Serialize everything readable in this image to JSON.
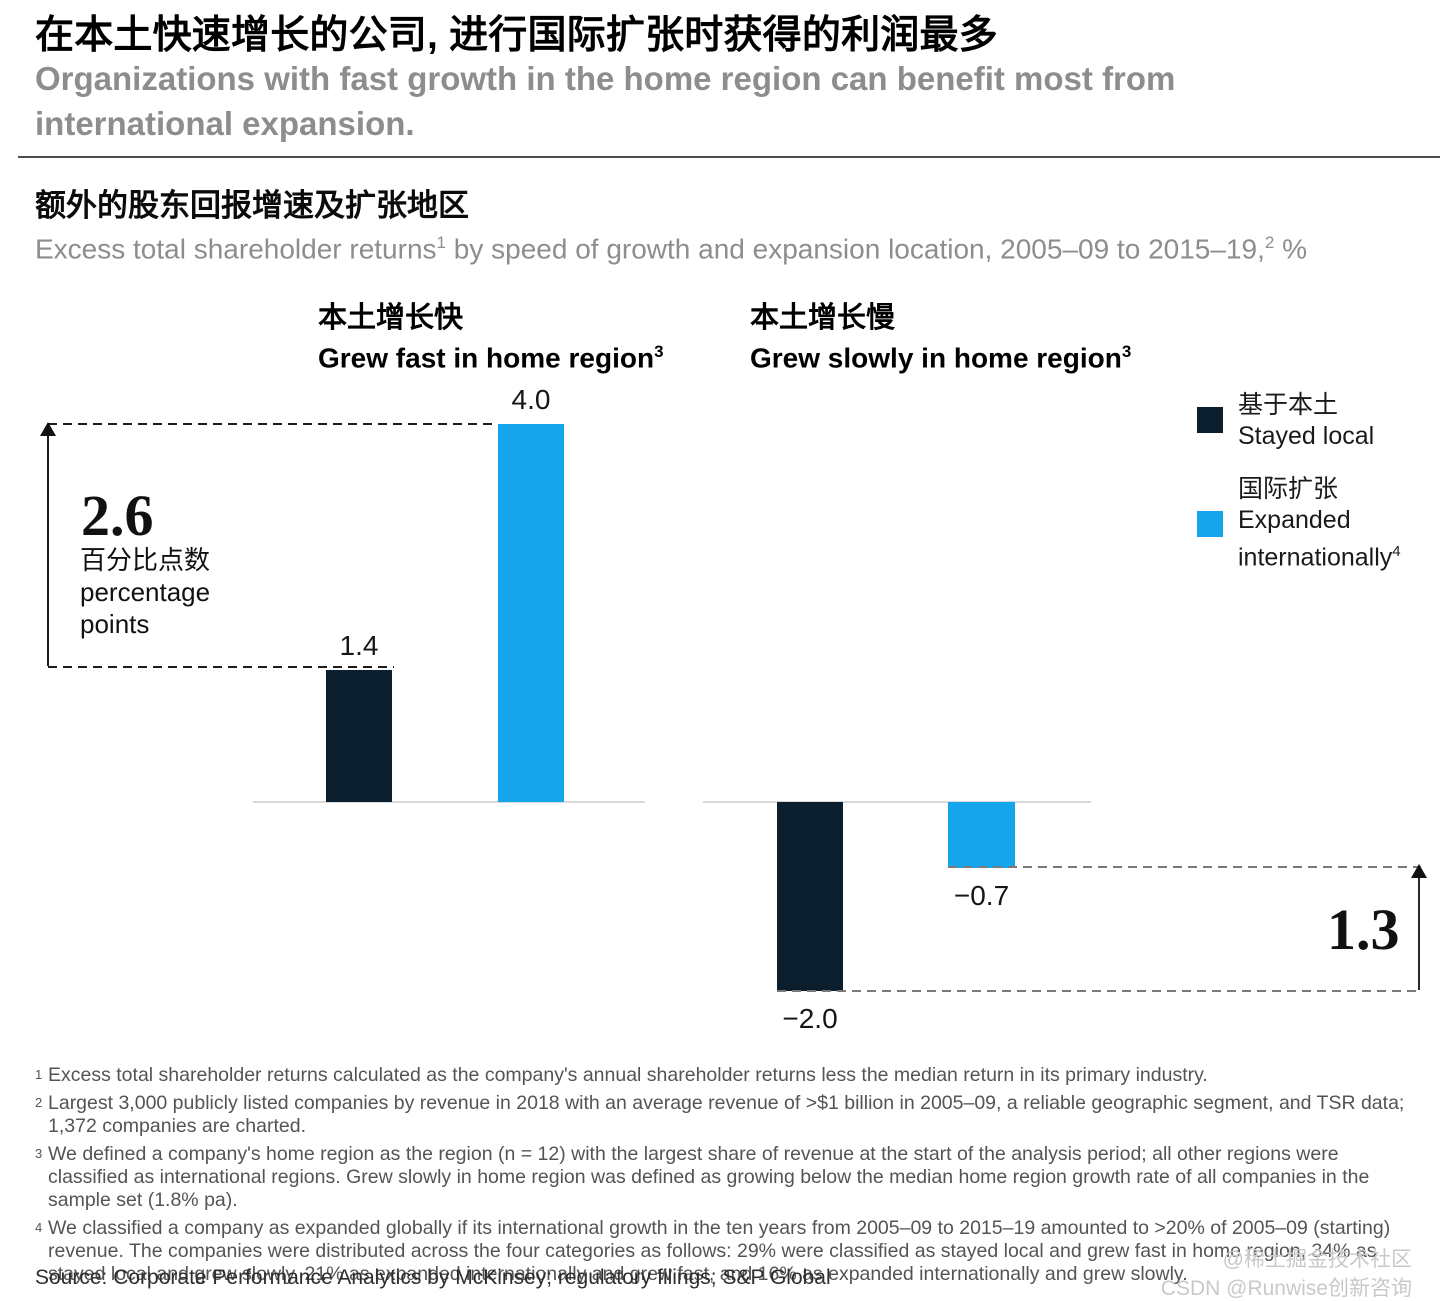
{
  "header": {
    "title_zh": "在本土快速增长的公司, 进行国际扩张时获得的利润最多",
    "subtitle_en_lines": [
      "Organizations with fast growth in the home region can benefit most from",
      "international expansion."
    ]
  },
  "exhibit": {
    "title_zh": "额外的股东回报增速及扩张地区",
    "subtitle_part1": "Excess total shareholder returns",
    "subtitle_sup1": "1",
    "subtitle_part2": " by speed of growth and expansion location, 2005–09 to 2015–19,",
    "subtitle_sup2": "2",
    "subtitle_part3": " %"
  },
  "chart_data": {
    "type": "bar",
    "unit": "percentage points (%)",
    "ylim": [
      -2.2,
      4.2
    ],
    "grid": false,
    "legend_position": "right",
    "series": [
      {
        "id": "stayed_local",
        "label_zh": "基于本土",
        "label_en": "Stayed local",
        "color": "#0a1e2e"
      },
      {
        "id": "expanded_internationally",
        "label_zh": "国际扩张",
        "label_en_lines": [
          "Expanded",
          "internationally"
        ],
        "footnote_sup": "4",
        "color": "#14a5ea"
      }
    ],
    "groups": [
      {
        "label_zh": "本土增长快",
        "label_en": "Grew fast in home region",
        "footnote_sup": "3",
        "bars": [
          {
            "series": "stayed_local",
            "value": 1.4,
            "label": "1.4"
          },
          {
            "series": "expanded_internationally",
            "value": 4.0,
            "label": "4.0"
          }
        ],
        "delta": {
          "value": 2.6,
          "label": "2.6",
          "caption_zh": "百分比点数",
          "caption_en_lines": [
            "percentage",
            "points"
          ]
        }
      },
      {
        "label_zh": "本土增长慢",
        "label_en": "Grew slowly in home region",
        "footnote_sup": "3",
        "bars": [
          {
            "series": "stayed_local",
            "value": -2.0,
            "label": "−2.0"
          },
          {
            "series": "expanded_internationally",
            "value": -0.7,
            "label": "−0.7"
          }
        ],
        "delta": {
          "value": 1.3,
          "label": "1.3"
        }
      }
    ]
  },
  "footnotes": [
    {
      "marker": "1",
      "text": "Excess total shareholder returns calculated as the company's annual shareholder returns less the median return in its primary industry."
    },
    {
      "marker": "2",
      "text": "Largest 3,000 publicly listed companies by revenue in 2018 with an average revenue of >$1 billion in 2005–09, a reliable geographic segment, and TSR data; 1,372 companies are charted."
    },
    {
      "marker": "3",
      "text": "We defined a company's home region as the region (n = 12) with the largest share of revenue at the start of the analysis period; all other regions were classified as international regions. Grew slowly in home region was defined as growing below the median home region growth rate of all companies in the sample set (1.8% pa)."
    },
    {
      "marker": "4",
      "text": "We classified a company as expanded globally if its international growth in the ten years from 2005–09 to 2015–19 amounted to >20% of 2005–09 (starting) revenue. The companies were distributed across the four categories as follows: 29% were classified as stayed local and grew fast in home region, 34% as stayed local and grew slowly, 21% as expanded internationally and grew fast, and 16% as expanded internationally and grew slowly."
    }
  ],
  "source": "Source: Corporate Performance Analytics by McKinsey; regulatory filings; S&P Global",
  "watermark_lines": [
    "@稀土掘金技术社区",
    "CSDN @Runwise创新咨询"
  ]
}
